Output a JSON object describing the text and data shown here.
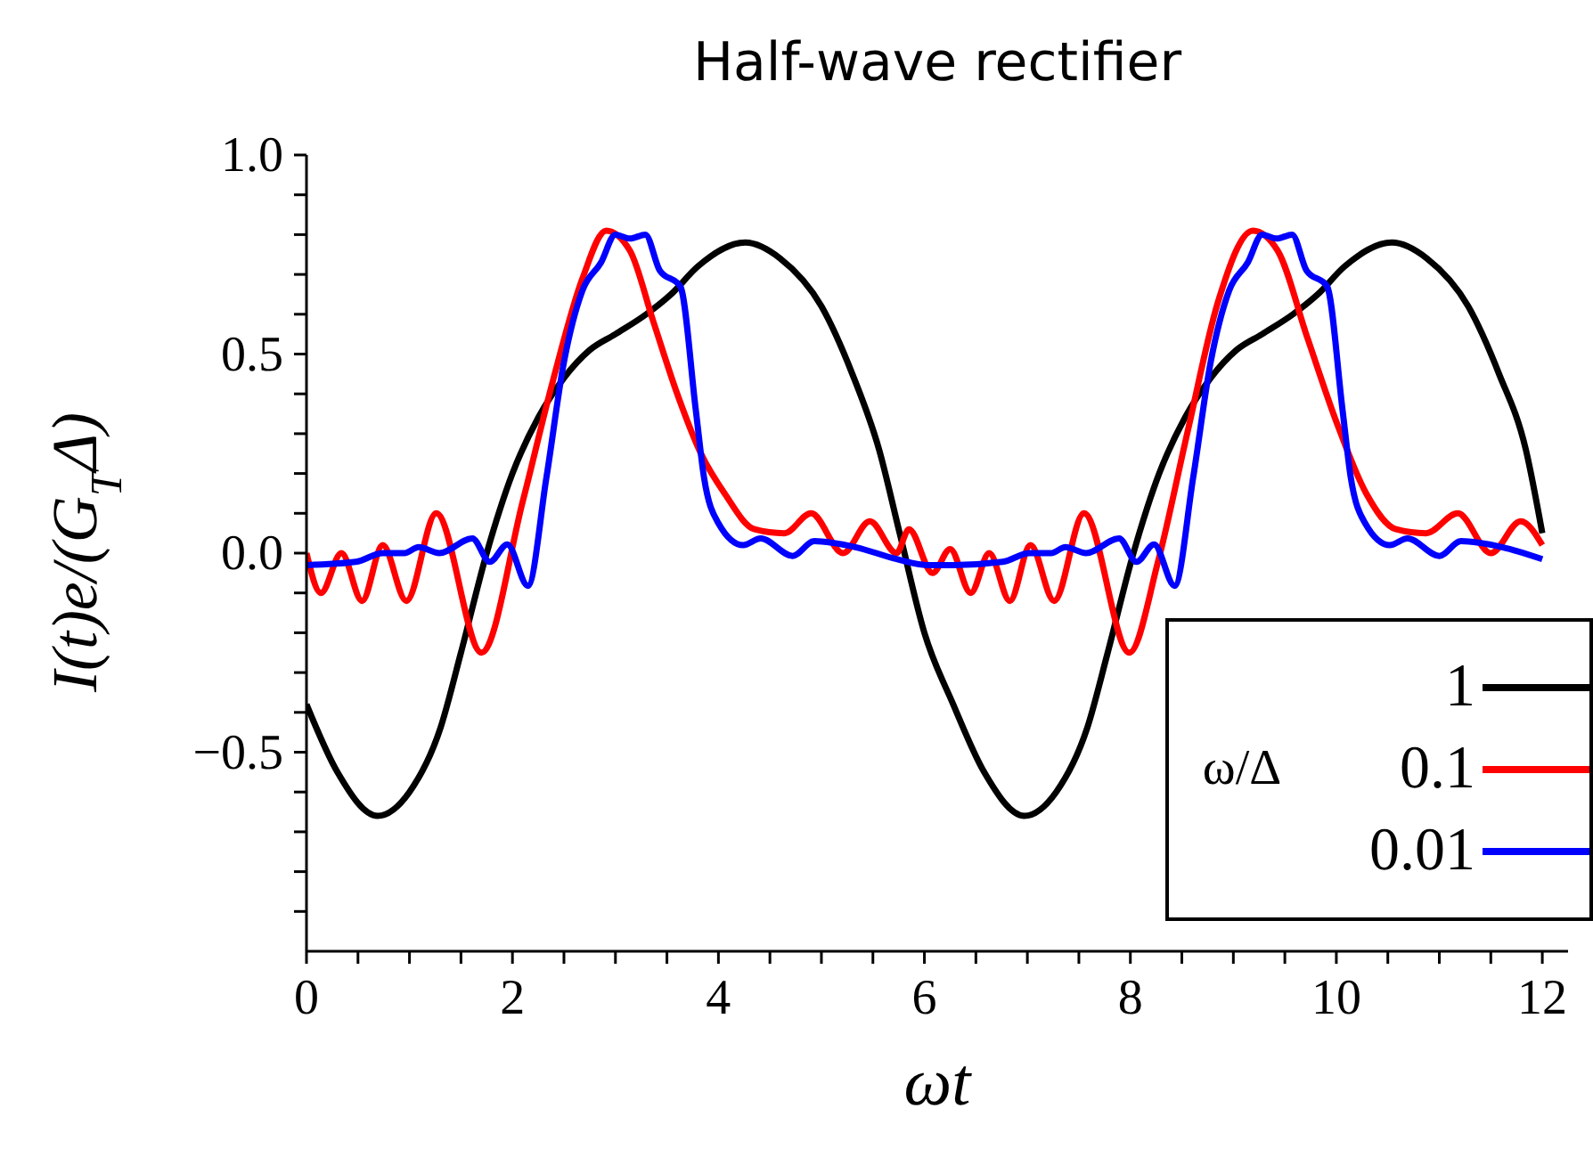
{
  "chart_data": {
    "type": "line",
    "title": "Half-wave rectifier",
    "xlabel": "ωt",
    "ylabel": "I(t)e/(G$_{T}$Δ)",
    "legend_title": "ω/Δ",
    "legend": "bottom right",
    "xlim": [
      0,
      12.25
    ],
    "xticks": [
      0,
      {
        "value": 0.5,
        "label": null
      },
      {
        "value": 1,
        "label": null
      },
      {
        "value": 1.5,
        "label": null
      },
      2,
      {
        "value": 2.5,
        "label": null
      },
      {
        "value": 3,
        "label": null
      },
      {
        "value": 3.5,
        "label": null
      },
      4,
      {
        "value": 4.5,
        "label": null
      },
      {
        "value": 5,
        "label": null
      },
      {
        "value": 5.5,
        "label": null
      },
      6,
      {
        "value": 6.5,
        "label": null
      },
      {
        "value": 7,
        "label": null
      },
      {
        "value": 7.5,
        "label": null
      },
      8,
      {
        "value": 8.5,
        "label": null
      },
      {
        "value": 9,
        "label": null
      },
      {
        "value": 9.5,
        "label": null
      },
      10,
      {
        "value": 10.5,
        "label": null
      },
      {
        "value": 11,
        "label": null
      },
      {
        "value": 11.5,
        "label": null
      },
      12
    ],
    "ylim": [
      -1,
      1
    ],
    "yticks": [
      {
        "value": -0.9,
        "label": null
      },
      {
        "value": -0.8,
        "label": null
      },
      {
        "value": -0.7,
        "label": null
      },
      {
        "value": -0.6,
        "label": null
      },
      {
        "value": -0.5,
        "label": "−0.5"
      },
      {
        "value": -0.4,
        "label": null
      },
      {
        "value": -0.3,
        "label": null
      },
      {
        "value": -0.2,
        "label": null
      },
      {
        "value": -0.1,
        "label": null
      },
      {
        "value": 0,
        "label": "0.0"
      },
      {
        "value": 0.1,
        "label": null
      },
      {
        "value": 0.2,
        "label": null
      },
      {
        "value": 0.3,
        "label": null
      },
      {
        "value": 0.4,
        "label": null
      },
      {
        "value": 0.5,
        "label": "0.5"
      },
      {
        "value": 0.6,
        "label": null
      },
      {
        "value": 0.7,
        "label": null
      },
      {
        "value": 0.8,
        "label": null
      },
      {
        "value": 0.9,
        "label": null
      },
      {
        "value": 1,
        "label": "1.0"
      }
    ],
    "series": [
      {
        "name": "1",
        "color": "#000000",
        "x": [
          0,
          0.3,
          0.69,
          1.0,
          1.3,
          1.5,
          1.75,
          2.0,
          2.25,
          2.5,
          2.75,
          3.0,
          3.3,
          3.54,
          3.8,
          4.26,
          4.6,
          5.0,
          5.3,
          5.56,
          5.76,
          6.0,
          6.28,
          6.58,
          6.97,
          7.28,
          7.58,
          7.78,
          8.03,
          8.28,
          8.53,
          8.78,
          9.03,
          9.28,
          9.58,
          9.82,
          10.08,
          10.54,
          10.88,
          11.28,
          11.58,
          11.84,
          12.0
        ],
        "values": [
          -0.38,
          -0.55,
          -0.66,
          -0.6,
          -0.44,
          -0.25,
          0.0,
          0.2,
          0.34,
          0.44,
          0.51,
          0.55,
          0.6,
          0.65,
          0.72,
          0.78,
          0.74,
          0.62,
          0.45,
          0.26,
          0.05,
          -0.2,
          -0.38,
          -0.55,
          -0.66,
          -0.6,
          -0.44,
          -0.25,
          0.0,
          0.2,
          0.34,
          0.44,
          0.51,
          0.55,
          0.6,
          0.65,
          0.72,
          0.78,
          0.74,
          0.62,
          0.45,
          0.26,
          0.05
        ]
      },
      {
        "name": "0.1",
        "color": "#ff0000",
        "x": [
          0,
          0.14,
          0.34,
          0.54,
          0.74,
          0.97,
          1.26,
          1.7,
          2.1,
          2.39,
          2.68,
          2.91,
          3.14,
          3.37,
          3.6,
          3.83,
          4.06,
          4.35,
          4.64,
          4.9,
          5.21,
          5.47,
          5.73,
          5.85,
          6.08,
          6.25,
          6.45,
          6.63,
          6.83,
          7.03,
          7.26,
          7.55,
          7.99,
          8.27,
          8.56,
          8.85,
          9.19,
          9.43,
          9.72,
          10.0,
          10.29,
          10.58,
          10.87,
          11.18,
          11.5,
          11.79,
          12.0
        ],
        "values": [
          0.0,
          -0.1,
          0.0,
          -0.12,
          0.02,
          -0.12,
          0.1,
          -0.25,
          0.13,
          0.43,
          0.69,
          0.81,
          0.76,
          0.58,
          0.4,
          0.25,
          0.15,
          0.06,
          0.05,
          0.1,
          0.0,
          0.08,
          0.0,
          0.06,
          -0.05,
          0.01,
          -0.1,
          0.0,
          -0.12,
          0.02,
          -0.12,
          0.1,
          -0.25,
          -0.02,
          0.31,
          0.63,
          0.81,
          0.76,
          0.54,
          0.33,
          0.15,
          0.06,
          0.05,
          0.1,
          0.0,
          0.08,
          0.02
        ]
      },
      {
        "name": "0.01",
        "color": "#0000ff",
        "x": [
          0,
          0.48,
          0.74,
          0.95,
          1.09,
          1.29,
          1.61,
          1.78,
          1.95,
          2.15,
          2.33,
          2.5,
          2.68,
          2.86,
          3.0,
          3.14,
          3.29,
          3.43,
          3.63,
          3.78,
          3.86,
          4.0,
          4.24,
          4.41,
          4.72,
          4.93,
          5.33,
          5.73,
          6.02,
          6.28,
          6.76,
          7.02,
          7.23,
          7.37,
          7.57,
          7.89,
          8.06,
          8.23,
          8.43,
          8.61,
          8.78,
          8.96,
          9.14,
          9.28,
          9.42,
          9.57,
          9.71,
          9.91,
          10.06,
          10.14,
          10.28,
          10.52,
          10.69,
          11.0,
          11.21,
          11.61,
          12.0
        ],
        "values": [
          -0.03,
          -0.022,
          0.0,
          0.0,
          0.015,
          0.0,
          0.037,
          -0.022,
          0.022,
          -0.082,
          0.19,
          0.48,
          0.66,
          0.73,
          0.8,
          0.79,
          0.8,
          0.71,
          0.67,
          0.36,
          0.19,
          0.075,
          0.02,
          0.037,
          -0.007,
          0.03,
          0.015,
          -0.015,
          -0.03,
          -0.03,
          -0.022,
          0.0,
          0.0,
          0.015,
          0.0,
          0.037,
          -0.022,
          0.022,
          -0.082,
          0.19,
          0.48,
          0.66,
          0.73,
          0.8,
          0.79,
          0.8,
          0.71,
          0.67,
          0.36,
          0.19,
          0.075,
          0.02,
          0.037,
          -0.007,
          0.03,
          0.015,
          -0.015
        ]
      }
    ]
  }
}
